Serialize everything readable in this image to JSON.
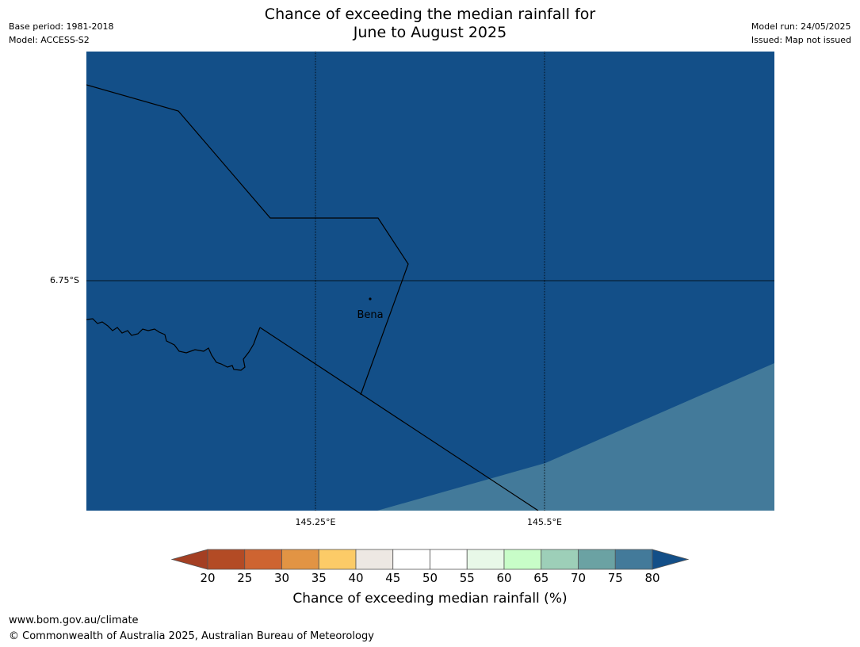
{
  "header": {
    "title_line1": "Chance of exceeding the median rainfall for",
    "title_line2": "June to August 2025",
    "base_period": "Base period: 1981-2018",
    "model": "Model: ACCESS-S2",
    "model_run": "Model run: 24/05/2025",
    "issued": "Issued: Map not issued"
  },
  "map": {
    "lat_label": "6.75°S",
    "lon_labels": [
      "145.25°E",
      "145.5°E"
    ],
    "place": "Bena",
    "colors": {
      "band_70_80": "#134f88",
      "band_65_70": "#437a9a",
      "border": "#000000"
    }
  },
  "legend": {
    "title": "Chance of exceeding median rainfall (%)",
    "ticks": [
      "20",
      "25",
      "30",
      "35",
      "40",
      "45",
      "50",
      "55",
      "60",
      "65",
      "70",
      "75",
      "80"
    ],
    "colors": [
      "#a43f23",
      "#b34b25",
      "#ce6431",
      "#e29444",
      "#fccb67",
      "#ede8e3",
      "#ffffff",
      "#ffffff",
      "#e8f8e8",
      "#c8fdc8",
      "#9dcfb8",
      "#6ba2a3",
      "#437a9a",
      "#134f88"
    ]
  },
  "footer": {
    "url": "www.bom.gov.au/climate",
    "copyright": "© Commonwealth of Australia 2025, Australian Bureau of Meteorology"
  }
}
